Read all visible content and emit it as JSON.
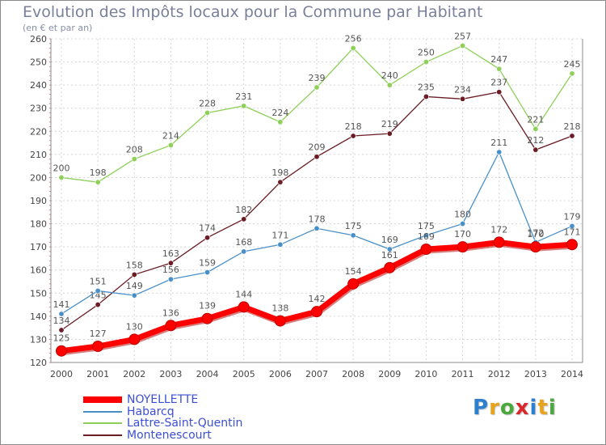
{
  "chart_data": {
    "type": "line",
    "title": "Evolution des Impôts locaux pour la Commune par Habitant",
    "subtitle": "(en € et par an)",
    "xlabel": "",
    "ylabel": "",
    "ylim": [
      120,
      260
    ],
    "yticks": [
      120,
      130,
      140,
      150,
      160,
      170,
      180,
      190,
      200,
      210,
      220,
      230,
      240,
      250,
      260
    ],
    "categories": [
      "2000",
      "2001",
      "2002",
      "2003",
      "2004",
      "2005",
      "2006",
      "2007",
      "2008",
      "2009",
      "2010",
      "2011",
      "2012",
      "2013",
      "2014"
    ],
    "grid": true,
    "series": [
      {
        "name": "NOYELLETTE",
        "color": "#ff0000",
        "values": [
          125,
          127,
          130,
          136,
          139,
          144,
          138,
          142,
          154,
          161,
          169,
          170,
          172,
          170,
          171
        ]
      },
      {
        "name": "Habarcq",
        "color": "#4a90c8",
        "values": [
          141,
          151,
          149,
          156,
          159,
          168,
          171,
          178,
          175,
          169,
          175,
          180,
          211,
          172,
          179
        ]
      },
      {
        "name": "Lattre-Saint-Quentin",
        "color": "#8ed05a",
        "values": [
          200,
          198,
          208,
          214,
          228,
          231,
          224,
          239,
          256,
          240,
          250,
          257,
          247,
          221,
          245
        ]
      },
      {
        "name": "Montenescourt",
        "color": "#6b1c24",
        "values": [
          134,
          145,
          158,
          163,
          174,
          182,
          198,
          209,
          218,
          219,
          235,
          234,
          237,
          212,
          218
        ]
      }
    ]
  },
  "logo": {
    "letters": [
      "P",
      "r",
      "o",
      "x",
      "i",
      "t",
      "i"
    ],
    "colors": [
      "#2e7fd0",
      "#e8a21c",
      "#4aa83c",
      "#d8282c",
      "#2e7fd0",
      "#e8a21c",
      "#4aa83c"
    ]
  }
}
